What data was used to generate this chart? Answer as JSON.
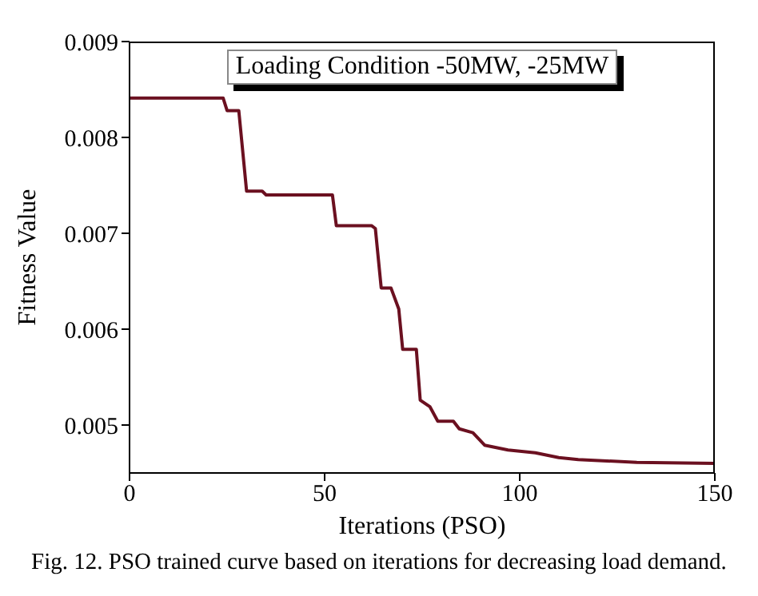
{
  "chart_data": {
    "type": "line",
    "xlabel": "Iterations (PSO)",
    "ylabel": "Fitness Value",
    "annotations": [
      "Loading Condition -50MW, -25MW",
      "Fig. 12. PSO trained curve based on iterations for decreasing load demand."
    ],
    "series": [
      {
        "color": "#6b1020",
        "x": [
          0,
          24,
          25,
          28,
          30,
          34,
          35,
          52,
          53,
          62,
          63,
          64.5,
          67,
          69,
          70,
          73.5,
          74.5,
          77,
          79,
          83,
          84.5,
          88,
          91,
          97,
          104,
          110,
          115,
          130,
          150
        ],
        "values": [
          0.00841,
          0.00841,
          0.00828,
          0.00828,
          0.00744,
          0.00744,
          0.0074,
          0.0074,
          0.00708,
          0.00708,
          0.00705,
          0.00643,
          0.00643,
          0.00621,
          0.00579,
          0.00579,
          0.00526,
          0.00519,
          0.00504,
          0.00504,
          0.00496,
          0.00492,
          0.00479,
          0.00474,
          0.00471,
          0.00466,
          0.00464,
          0.00461,
          0.0046
        ]
      }
    ],
    "xlim": [
      0,
      150
    ],
    "xticks": [
      0,
      50,
      100,
      150
    ],
    "ylim": [
      0.0045,
      0.009
    ],
    "yticks": [
      0.005,
      0.006,
      0.007,
      0.008,
      0.009
    ],
    "grid": false,
    "marker": "none",
    "line_style": "solid"
  }
}
